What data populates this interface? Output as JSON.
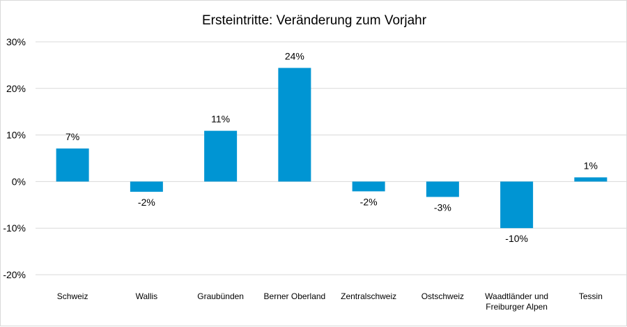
{
  "chart_data": {
    "type": "bar",
    "title": "Ersteintritte: Veränderung zum Vorjahr",
    "xlabel": "",
    "ylabel": "",
    "categories": [
      [
        "Schweiz"
      ],
      [
        "Wallis"
      ],
      [
        "Graubünden"
      ],
      [
        "Berner Oberland"
      ],
      [
        "Zentralschweiz"
      ],
      [
        "Ostschweiz"
      ],
      [
        "Waadtländer und",
        "Freiburger Alpen"
      ],
      [
        "Tessin"
      ]
    ],
    "values": [
      7.1,
      -2.2,
      10.9,
      24.4,
      -2.1,
      -3.3,
      -10.0,
      0.9
    ],
    "data_labels": [
      "7%",
      "-2%",
      "11%",
      "24%",
      "-2%",
      "-3%",
      "-10%",
      "1%"
    ],
    "ylim": [
      -20,
      30
    ],
    "yticks": [
      30,
      20,
      10,
      0,
      -10,
      -20
    ],
    "ytick_labels": [
      "30%",
      "20%",
      "10%",
      "0%",
      "-10%",
      "-20%"
    ],
    "grid": true,
    "legend": "none",
    "bar_color": "#0095D3",
    "grid_color": "#d9d9d9"
  }
}
